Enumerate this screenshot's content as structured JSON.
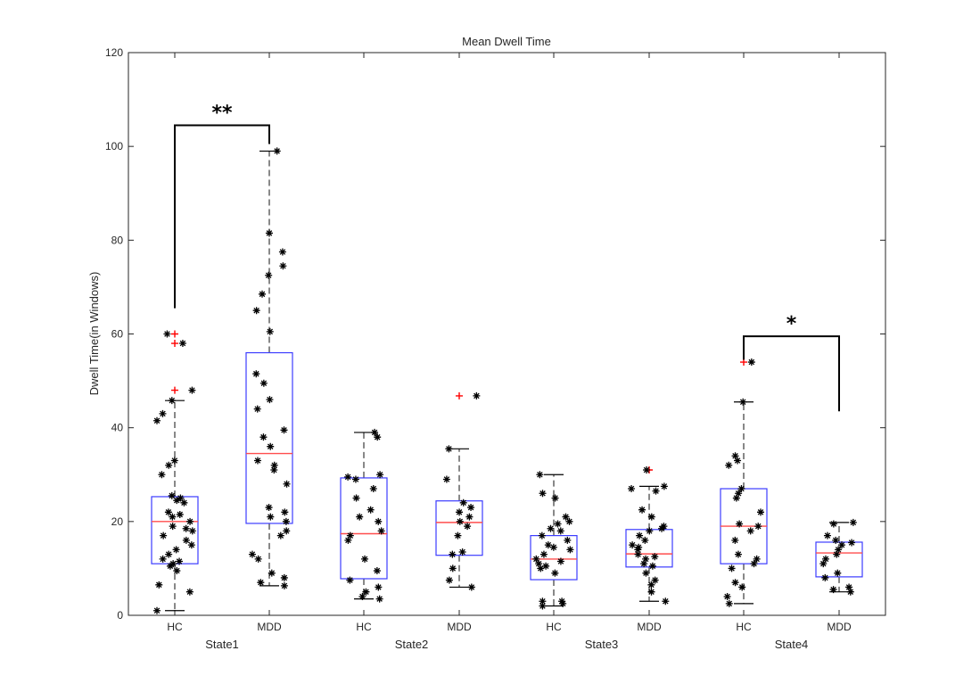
{
  "chart_data": {
    "type": "boxplot",
    "title": "Mean Dwell Time",
    "ylabel": "Dwell Time(in Windows)",
    "xlabel": "",
    "ylim": [
      0,
      120
    ],
    "yticks": [
      0,
      20,
      40,
      60,
      80,
      100,
      120
    ],
    "grid": false,
    "colors": {
      "box": "#3c3cff",
      "median": "#ff4d4d",
      "whisker": "#000000",
      "outlier": "#ff0000",
      "point": "#000000",
      "axis": "#262626"
    },
    "groups": [
      "State1",
      "State2",
      "State3",
      "State4"
    ],
    "boxes": [
      {
        "label": "HC",
        "group": "State1",
        "q1": 11,
        "median": 20,
        "q3": 25.3,
        "whisker_low": 1,
        "whisker_high": 45.8,
        "outliers": [
          48,
          58,
          60
        ],
        "points": [
          1,
          5,
          6.5,
          9.5,
          10.5,
          11,
          11.5,
          12,
          13,
          14,
          15,
          16,
          17,
          18,
          18.5,
          19,
          20,
          21,
          21.5,
          22,
          24,
          24.5,
          25,
          25.5,
          30,
          32,
          33,
          41.5,
          43,
          45.8,
          48,
          58,
          60
        ]
      },
      {
        "label": "MDD",
        "group": "State1",
        "q1": 19.6,
        "median": 34.5,
        "q3": 56,
        "whisker_low": 6.3,
        "whisker_high": 99,
        "outliers": [],
        "points": [
          6.3,
          7,
          8,
          9,
          12,
          13,
          17,
          18,
          20,
          21,
          22,
          23,
          28,
          31,
          32,
          33,
          36,
          38,
          39.5,
          44,
          46,
          49.5,
          51.5,
          60.5,
          65,
          68.5,
          72.5,
          74.5,
          77.5,
          81.5,
          99
        ]
      },
      {
        "label": "HC",
        "group": "State2",
        "q1": 7.8,
        "median": 17.4,
        "q3": 29.3,
        "whisker_low": 3.5,
        "whisker_high": 39,
        "outliers": [],
        "points": [
          3.5,
          4,
          5,
          6,
          7.5,
          9.5,
          12,
          16,
          17,
          18,
          20,
          21,
          22.5,
          25,
          27,
          29,
          29.5,
          30,
          38,
          39
        ]
      },
      {
        "label": "MDD",
        "group": "State2",
        "q1": 12.8,
        "median": 19.8,
        "q3": 24.4,
        "whisker_low": 6,
        "whisker_high": 35.5,
        "outliers": [
          46.8
        ],
        "points": [
          6,
          7.5,
          10,
          13,
          13.5,
          17,
          19,
          20,
          21,
          22,
          23,
          24,
          29,
          35.5,
          46.8
        ]
      },
      {
        "label": "HC",
        "group": "State3",
        "q1": 7.6,
        "median": 12,
        "q3": 17,
        "whisker_low": 2,
        "whisker_high": 30,
        "outliers": [],
        "points": [
          2,
          2.5,
          3,
          3,
          9,
          10,
          10.5,
          11,
          11.5,
          12,
          13,
          14,
          14.5,
          15,
          16,
          17,
          18,
          18.5,
          19.5,
          20,
          21,
          25,
          26,
          30
        ]
      },
      {
        "label": "MDD",
        "group": "State3",
        "q1": 10.3,
        "median": 13.1,
        "q3": 18.3,
        "whisker_low": 3,
        "whisker_high": 27.5,
        "outliers": [
          31
        ],
        "points": [
          3,
          5,
          6.5,
          7.5,
          9,
          10.5,
          11,
          12,
          12.5,
          13,
          14,
          14.5,
          15,
          16,
          17,
          18,
          18.5,
          19,
          21,
          22.5,
          26.5,
          27,
          27.5,
          31
        ]
      },
      {
        "label": "HC",
        "group": "State4",
        "q1": 11,
        "median": 19,
        "q3": 27,
        "whisker_low": 2.5,
        "whisker_high": 45.5,
        "outliers": [
          54
        ],
        "points": [
          2.5,
          4,
          6,
          7,
          10,
          11,
          12,
          13,
          16,
          18,
          19,
          19.5,
          22,
          25,
          26,
          27,
          32,
          33,
          34,
          45.5,
          54
        ]
      },
      {
        "label": "MDD",
        "group": "State4",
        "q1": 8.2,
        "median": 13.3,
        "q3": 15.6,
        "whisker_low": 5,
        "whisker_high": 19.8,
        "outliers": [],
        "points": [
          5,
          5.5,
          6,
          8,
          9,
          11,
          12,
          13,
          14,
          15,
          15.5,
          16,
          17,
          19.5,
          19.8
        ]
      }
    ],
    "significance": [
      {
        "label": "**",
        "from_box": 0,
        "to_box": 1,
        "bracket_y": 104.5,
        "left_end": 65.5,
        "right_end": 100.5
      },
      {
        "label": "*",
        "from_box": 6,
        "to_box": 7,
        "bracket_y": 59.5,
        "left_end": 54.5,
        "right_end": 43.5
      }
    ]
  }
}
